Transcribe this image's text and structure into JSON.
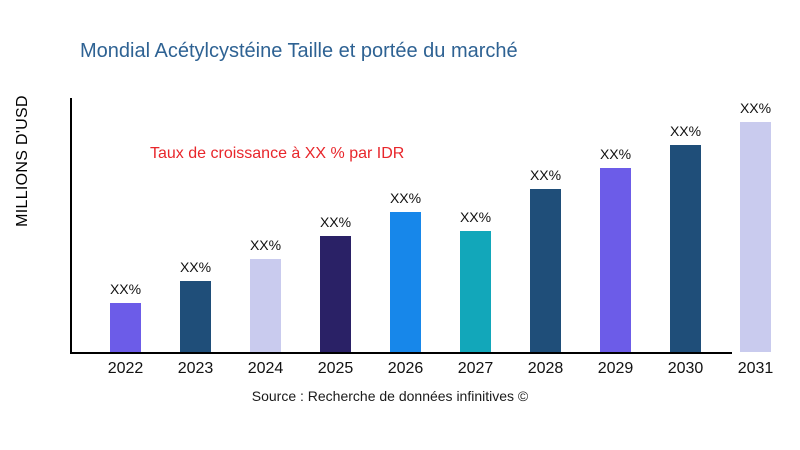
{
  "header": {
    "title": "Mondial Acétylcystéine Taille et portée du marché",
    "title_color": "#2e6293"
  },
  "annotation": {
    "text": "Taux de croissance à XX % par IDR",
    "color": "#e8262b"
  },
  "footer": {
    "source": "Source : Recherche de données infinitives ©"
  },
  "chart_data": {
    "type": "bar",
    "title": "Mondial Acétylcystéine Taille et portée du marché",
    "xlabel": "",
    "ylabel": "MILLIONS D'USD",
    "categories": [
      "2022",
      "2023",
      "2024",
      "2025",
      "2026",
      "2027",
      "2028",
      "2029",
      "2030",
      "2031"
    ],
    "bar_value_labels": [
      "XX%",
      "XX%",
      "XX%",
      "XX%",
      "XX%",
      "XX%",
      "XX%",
      "XX%",
      "XX%",
      "XX%"
    ],
    "values_relative_pct_of_max": [
      21.3,
      30.9,
      40.4,
      50.4,
      60.9,
      52.6,
      70.9,
      80.0,
      90.0,
      100.0
    ],
    "bar_colors": [
      "#6c5ce8",
      "#1f4e79",
      "#c9cbee",
      "#2a2166",
      "#1787ea",
      "#12a7ba",
      "#1f4e79",
      "#6c5ce8",
      "#1f4e79",
      "#c9cbee"
    ],
    "annotation": "Taux de croissance à XX % par IDR",
    "grid": false,
    "legend": false,
    "axis_color": "#000000",
    "note": "no numeric axis shown; values are placeholder XX% labels, heights estimated as % of tallest bar"
  }
}
